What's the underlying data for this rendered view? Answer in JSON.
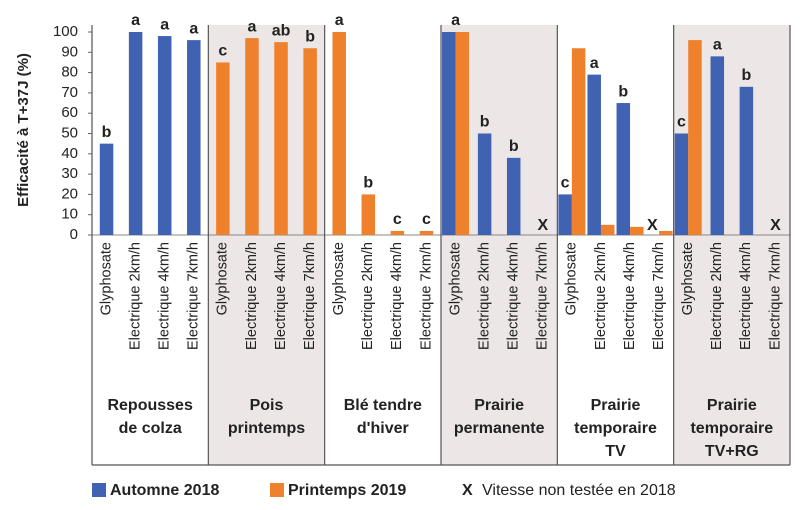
{
  "chart_data": {
    "type": "bar",
    "y_label": "Efficacité à T+37J (%)",
    "ylim": [
      0,
      100
    ],
    "yticks": [
      0,
      10,
      20,
      30,
      40,
      50,
      60,
      70,
      80,
      90,
      100
    ],
    "groups": [
      [
        "Repousses",
        "de colza"
      ],
      [
        "Pois",
        "printemps"
      ],
      [
        "Blé tendre",
        "d'hiver"
      ],
      [
        "Prairie",
        "permanente"
      ],
      [
        "Prairie",
        "temporaire",
        "TV"
      ],
      [
        "Prairie",
        "temporaire",
        "TV+RG"
      ]
    ],
    "categories": [
      "Glyphosate",
      "Electrique 2km/h",
      "Electrique 4km/h",
      "Electrique 7km/h",
      "Glyphosate",
      "Electrique 2km/h",
      "Electrique 4km/h",
      "Electrique 7km/h",
      "Glyphosate",
      "Electrique 2km/h",
      "Electrique 4km/h",
      "Electrique 7km/h",
      "Glyphosate",
      "Electrique 2km/h",
      "Electrique 4km/h",
      "Electrique 7km/h",
      "Glyphosate",
      "Electrique 2km/h",
      "Electrique 4km/h",
      "Electrique 7km/h",
      "Glyphosate",
      "Electrique 2km/h",
      "Electrique 4km/h",
      "Electrique 7km/h"
    ],
    "series": [
      {
        "name": "Automne 2018",
        "color": "#3f62b3",
        "values": [
          45,
          100,
          98,
          96,
          null,
          null,
          null,
          null,
          null,
          null,
          null,
          null,
          100,
          50,
          38,
          null,
          20,
          79,
          65,
          null,
          50,
          88,
          73,
          null
        ],
        "letters": [
          "b",
          "a",
          "a",
          "a",
          null,
          null,
          null,
          null,
          null,
          null,
          null,
          null,
          "a",
          "b",
          "b",
          null,
          "c",
          "a",
          "b",
          null,
          "c",
          "a",
          "b",
          null
        ]
      },
      {
        "name": "Printemps 2019",
        "color": "#f0812c",
        "values": [
          null,
          null,
          null,
          null,
          85,
          97,
          95,
          92,
          100,
          20,
          2,
          2,
          100,
          null,
          null,
          null,
          92,
          5,
          4,
          2,
          96,
          null,
          null,
          null
        ],
        "letters": [
          null,
          null,
          null,
          null,
          "c",
          "a",
          "ab",
          "b",
          "a",
          "b",
          "c",
          "c",
          null,
          null,
          null,
          null,
          null,
          null,
          null,
          null,
          null,
          null,
          null,
          null
        ]
      }
    ],
    "untested_marker": "X",
    "untested_label": "Vitesse non testée en 2018",
    "untested": [
      15,
      19,
      23
    ],
    "group_shading": "#ece6e6"
  }
}
